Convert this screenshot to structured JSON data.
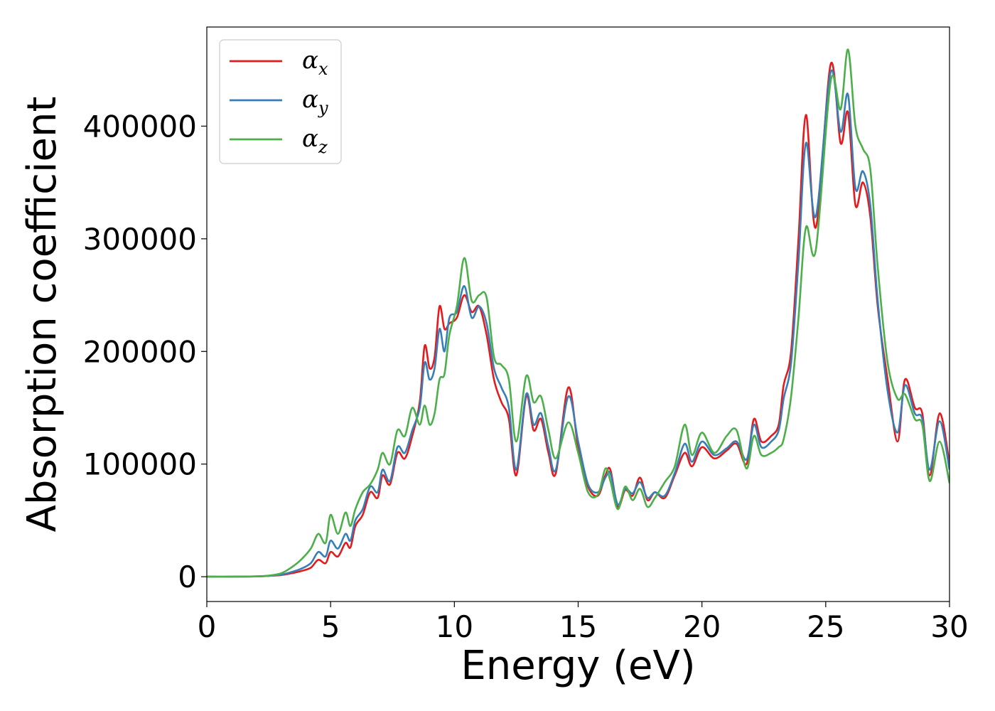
{
  "chart_data": {
    "type": "line",
    "xlabel": "Energy (eV)",
    "ylabel": "Absorption coefficient",
    "xlim": [
      0,
      30
    ],
    "ylim": [
      -22000,
      488000
    ],
    "xticks": [
      "0",
      "5",
      "10",
      "15",
      "20",
      "25",
      "30"
    ],
    "yticks": [
      "0",
      "100000",
      "200000",
      "300000",
      "400000"
    ],
    "grid": false,
    "legend_position": "top-left",
    "series": [
      {
        "name": "α",
        "name_sub": "x",
        "color": "#e41a1c",
        "points": [
          [
            0,
            0
          ],
          [
            1,
            0
          ],
          [
            2,
            300
          ],
          [
            2.5,
            800
          ],
          [
            3,
            1500
          ],
          [
            3.4,
            3000
          ],
          [
            3.8,
            5000
          ],
          [
            4.2,
            8000
          ],
          [
            4.5,
            15000
          ],
          [
            4.8,
            12000
          ],
          [
            5.0,
            22000
          ],
          [
            5.3,
            18000
          ],
          [
            5.6,
            30000
          ],
          [
            5.8,
            26000
          ],
          [
            6.0,
            45000
          ],
          [
            6.3,
            55000
          ],
          [
            6.6,
            75000
          ],
          [
            6.9,
            70000
          ],
          [
            7.1,
            90000
          ],
          [
            7.4,
            82000
          ],
          [
            7.7,
            110000
          ],
          [
            8.0,
            105000
          ],
          [
            8.3,
            125000
          ],
          [
            8.6,
            155000
          ],
          [
            8.8,
            205000
          ],
          [
            9.0,
            185000
          ],
          [
            9.2,
            195000
          ],
          [
            9.4,
            240000
          ],
          [
            9.6,
            220000
          ],
          [
            9.8,
            225000
          ],
          [
            10.1,
            230000
          ],
          [
            10.4,
            250000
          ],
          [
            10.7,
            235000
          ],
          [
            11.0,
            240000
          ],
          [
            11.3,
            215000
          ],
          [
            11.6,
            175000
          ],
          [
            11.9,
            155000
          ],
          [
            12.2,
            140000
          ],
          [
            12.5,
            90000
          ],
          [
            12.9,
            160000
          ],
          [
            13.2,
            130000
          ],
          [
            13.5,
            140000
          ],
          [
            13.8,
            110000
          ],
          [
            14.1,
            92000
          ],
          [
            14.6,
            168000
          ],
          [
            15.0,
            115000
          ],
          [
            15.4,
            80000
          ],
          [
            15.8,
            72000
          ],
          [
            16.1,
            90000
          ],
          [
            16.3,
            95000
          ],
          [
            16.6,
            62000
          ],
          [
            16.9,
            77000
          ],
          [
            17.2,
            72000
          ],
          [
            17.5,
            88000
          ],
          [
            17.8,
            68000
          ],
          [
            18.1,
            75000
          ],
          [
            18.5,
            70000
          ],
          [
            18.9,
            90000
          ],
          [
            19.3,
            110000
          ],
          [
            19.6,
            98000
          ],
          [
            20.0,
            115000
          ],
          [
            20.5,
            105000
          ],
          [
            21.0,
            112000
          ],
          [
            21.4,
            118000
          ],
          [
            21.8,
            100000
          ],
          [
            22.1,
            140000
          ],
          [
            22.4,
            120000
          ],
          [
            22.8,
            125000
          ],
          [
            23.1,
            135000
          ],
          [
            23.3,
            170000
          ],
          [
            23.6,
            200000
          ],
          [
            23.9,
            300000
          ],
          [
            24.2,
            410000
          ],
          [
            24.6,
            310000
          ],
          [
            25.2,
            455000
          ],
          [
            25.6,
            385000
          ],
          [
            25.9,
            412000
          ],
          [
            26.2,
            330000
          ],
          [
            26.5,
            350000
          ],
          [
            26.8,
            320000
          ],
          [
            27.1,
            240000
          ],
          [
            27.5,
            175000
          ],
          [
            27.9,
            120000
          ],
          [
            28.2,
            175000
          ],
          [
            28.6,
            150000
          ],
          [
            28.9,
            145000
          ],
          [
            29.2,
            90000
          ],
          [
            29.6,
            145000
          ],
          [
            30.0,
            100000
          ]
        ]
      },
      {
        "name": "α",
        "name_sub": "y",
        "color": "#377eb8",
        "points": [
          [
            0,
            0
          ],
          [
            1,
            0
          ],
          [
            2,
            300
          ],
          [
            2.5,
            800
          ],
          [
            3,
            1800
          ],
          [
            3.4,
            4000
          ],
          [
            3.8,
            7000
          ],
          [
            4.2,
            12000
          ],
          [
            4.5,
            22000
          ],
          [
            4.8,
            18000
          ],
          [
            5.0,
            32000
          ],
          [
            5.3,
            25000
          ],
          [
            5.6,
            38000
          ],
          [
            5.8,
            32000
          ],
          [
            6.0,
            50000
          ],
          [
            6.3,
            60000
          ],
          [
            6.6,
            80000
          ],
          [
            6.9,
            75000
          ],
          [
            7.1,
            95000
          ],
          [
            7.4,
            85000
          ],
          [
            7.7,
            115000
          ],
          [
            8.0,
            110000
          ],
          [
            8.3,
            130000
          ],
          [
            8.6,
            150000
          ],
          [
            8.8,
            190000
          ],
          [
            9.0,
            175000
          ],
          [
            9.2,
            185000
          ],
          [
            9.4,
            220000
          ],
          [
            9.6,
            200000
          ],
          [
            9.8,
            230000
          ],
          [
            10.1,
            235000
          ],
          [
            10.4,
            258000
          ],
          [
            10.7,
            230000
          ],
          [
            11.0,
            240000
          ],
          [
            11.3,
            225000
          ],
          [
            11.6,
            185000
          ],
          [
            11.9,
            168000
          ],
          [
            12.2,
            150000
          ],
          [
            12.5,
            95000
          ],
          [
            12.9,
            162000
          ],
          [
            13.2,
            135000
          ],
          [
            13.5,
            145000
          ],
          [
            13.8,
            115000
          ],
          [
            14.1,
            95000
          ],
          [
            14.6,
            160000
          ],
          [
            15.0,
            120000
          ],
          [
            15.4,
            82000
          ],
          [
            15.8,
            75000
          ],
          [
            16.1,
            88000
          ],
          [
            16.3,
            92000
          ],
          [
            16.6,
            64000
          ],
          [
            16.9,
            78000
          ],
          [
            17.2,
            74000
          ],
          [
            17.5,
            84000
          ],
          [
            17.8,
            70000
          ],
          [
            18.1,
            75000
          ],
          [
            18.5,
            72000
          ],
          [
            18.9,
            92000
          ],
          [
            19.3,
            118000
          ],
          [
            19.6,
            102000
          ],
          [
            20.0,
            120000
          ],
          [
            20.5,
            108000
          ],
          [
            21.0,
            114000
          ],
          [
            21.4,
            120000
          ],
          [
            21.8,
            104000
          ],
          [
            22.1,
            135000
          ],
          [
            22.4,
            115000
          ],
          [
            22.8,
            120000
          ],
          [
            23.1,
            130000
          ],
          [
            23.3,
            158000
          ],
          [
            23.6,
            190000
          ],
          [
            23.9,
            280000
          ],
          [
            24.2,
            385000
          ],
          [
            24.6,
            320000
          ],
          [
            25.2,
            448000
          ],
          [
            25.6,
            395000
          ],
          [
            25.9,
            428000
          ],
          [
            26.2,
            345000
          ],
          [
            26.5,
            360000
          ],
          [
            26.8,
            330000
          ],
          [
            27.1,
            245000
          ],
          [
            27.5,
            165000
          ],
          [
            27.9,
            128000
          ],
          [
            28.2,
            170000
          ],
          [
            28.6,
            145000
          ],
          [
            28.9,
            140000
          ],
          [
            29.2,
            95000
          ],
          [
            29.6,
            138000
          ],
          [
            30.0,
            95000
          ]
        ]
      },
      {
        "name": "α",
        "name_sub": "z",
        "color": "#4daf4a",
        "points": [
          [
            0,
            0
          ],
          [
            1,
            0
          ],
          [
            2,
            300
          ],
          [
            2.5,
            1000
          ],
          [
            3,
            3000
          ],
          [
            3.4,
            8000
          ],
          [
            3.8,
            15000
          ],
          [
            4.2,
            25000
          ],
          [
            4.5,
            38000
          ],
          [
            4.8,
            30000
          ],
          [
            5.0,
            55000
          ],
          [
            5.3,
            38000
          ],
          [
            5.6,
            57000
          ],
          [
            5.8,
            45000
          ],
          [
            6.0,
            60000
          ],
          [
            6.3,
            75000
          ],
          [
            6.6,
            82000
          ],
          [
            6.9,
            95000
          ],
          [
            7.1,
            110000
          ],
          [
            7.4,
            100000
          ],
          [
            7.7,
            130000
          ],
          [
            8.0,
            125000
          ],
          [
            8.3,
            150000
          ],
          [
            8.6,
            135000
          ],
          [
            8.8,
            152000
          ],
          [
            9.0,
            135000
          ],
          [
            9.2,
            145000
          ],
          [
            9.4,
            175000
          ],
          [
            9.6,
            180000
          ],
          [
            9.8,
            215000
          ],
          [
            10.1,
            240000
          ],
          [
            10.4,
            283000
          ],
          [
            10.7,
            245000
          ],
          [
            11.0,
            250000
          ],
          [
            11.3,
            248000
          ],
          [
            11.6,
            195000
          ],
          [
            11.9,
            188000
          ],
          [
            12.2,
            175000
          ],
          [
            12.5,
            120000
          ],
          [
            12.9,
            178000
          ],
          [
            13.2,
            155000
          ],
          [
            13.5,
            160000
          ],
          [
            13.8,
            130000
          ],
          [
            14.1,
            105000
          ],
          [
            14.6,
            137000
          ],
          [
            15.0,
            110000
          ],
          [
            15.4,
            75000
          ],
          [
            15.8,
            73000
          ],
          [
            16.1,
            96000
          ],
          [
            16.3,
            85000
          ],
          [
            16.6,
            60000
          ],
          [
            16.9,
            80000
          ],
          [
            17.2,
            68000
          ],
          [
            17.5,
            78000
          ],
          [
            17.8,
            62000
          ],
          [
            18.1,
            70000
          ],
          [
            18.5,
            84000
          ],
          [
            18.9,
            98000
          ],
          [
            19.3,
            135000
          ],
          [
            19.6,
            108000
          ],
          [
            20.0,
            128000
          ],
          [
            20.5,
            110000
          ],
          [
            21.0,
            125000
          ],
          [
            21.4,
            130000
          ],
          [
            21.8,
            96000
          ],
          [
            22.1,
            125000
          ],
          [
            22.4,
            108000
          ],
          [
            22.8,
            110000
          ],
          [
            23.1,
            115000
          ],
          [
            23.3,
            122000
          ],
          [
            23.6,
            160000
          ],
          [
            23.9,
            230000
          ],
          [
            24.2,
            310000
          ],
          [
            24.6,
            290000
          ],
          [
            25.2,
            440000
          ],
          [
            25.6,
            415000
          ],
          [
            25.9,
            468000
          ],
          [
            26.2,
            400000
          ],
          [
            26.5,
            380000
          ],
          [
            26.8,
            362000
          ],
          [
            27.1,
            275000
          ],
          [
            27.5,
            190000
          ],
          [
            27.9,
            158000
          ],
          [
            28.2,
            162000
          ],
          [
            28.6,
            140000
          ],
          [
            28.9,
            135000
          ],
          [
            29.2,
            85000
          ],
          [
            29.6,
            120000
          ],
          [
            30.0,
            83000
          ]
        ]
      }
    ]
  }
}
